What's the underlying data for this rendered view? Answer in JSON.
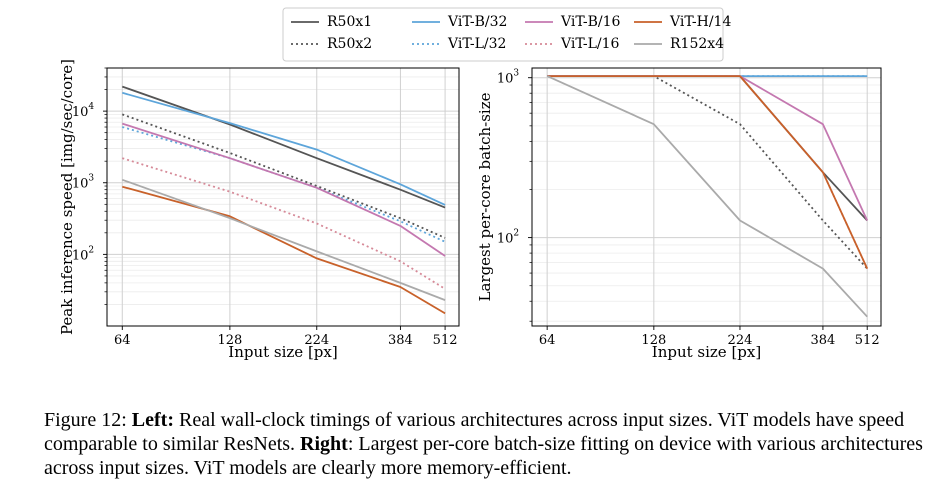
{
  "chart_data": [
    {
      "type": "line",
      "panel": "left",
      "xlabel": "Input size [px]",
      "ylabel": "Peak inference speed [img/sec/core]",
      "x_scale": "log",
      "y_scale": "log",
      "x_ticks": [
        64,
        128,
        224,
        384,
        512
      ],
      "y_ticks": [
        {
          "value": 100,
          "label": "10",
          "exp": "2"
        },
        {
          "value": 1000,
          "label": "10",
          "exp": "3"
        },
        {
          "value": 10000,
          "label": "10",
          "exp": "4"
        }
      ],
      "xlim": [
        58,
        560
      ],
      "ylim": [
        10,
        40000
      ],
      "grid": true,
      "x": [
        64,
        128,
        224,
        384,
        512
      ],
      "series": [
        {
          "name": "R50x1",
          "color": "#555555",
          "style": "solid",
          "values": [
            22000,
            6500,
            2200,
            800,
            450
          ]
        },
        {
          "name": "R50x2",
          "color": "#555555",
          "style": "dotted",
          "values": [
            9000,
            2600,
            900,
            320,
            170
          ]
        },
        {
          "name": "ViT-B/32",
          "color": "#5da5da",
          "style": "solid",
          "values": [
            18000,
            6800,
            2900,
            950,
            490
          ]
        },
        {
          "name": "ViT-L/32",
          "color": "#5da5da",
          "style": "dotted",
          "values": [
            6000,
            2200,
            850,
            290,
            150
          ]
        },
        {
          "name": "ViT-B/16",
          "color": "#c478b0",
          "style": "solid",
          "values": [
            6700,
            2200,
            850,
            250,
            95
          ]
        },
        {
          "name": "ViT-L/16",
          "color": "#d68a98",
          "style": "dotted",
          "values": [
            2200,
            750,
            270,
            80,
            33
          ]
        },
        {
          "name": "ViT-H/14",
          "color": "#c8612a",
          "style": "solid",
          "values": [
            880,
            340,
            88,
            35,
            15
          ]
        },
        {
          "name": "R152x4",
          "color": "#aaaaaa",
          "style": "solid",
          "values": [
            1100,
            320,
            110,
            40,
            23
          ]
        }
      ]
    },
    {
      "type": "line",
      "panel": "right",
      "xlabel": "Input size [px]",
      "ylabel": "Largest per-core batch-size",
      "x_scale": "log",
      "y_scale": "log",
      "x_ticks": [
        64,
        128,
        224,
        384,
        512
      ],
      "y_ticks": [
        {
          "value": 100,
          "label": "10",
          "exp": "2"
        },
        {
          "value": 1000,
          "label": "10",
          "exp": "3"
        }
      ],
      "xlim": [
        58,
        560
      ],
      "ylim": [
        28,
        1150
      ],
      "grid": true,
      "x": [
        64,
        128,
        224,
        384,
        512
      ],
      "series": [
        {
          "name": "R50x1",
          "color": "#555555",
          "style": "solid",
          "values": [
            1024,
            1024,
            1024,
            256,
            128
          ]
        },
        {
          "name": "R50x2",
          "color": "#555555",
          "style": "dotted",
          "values": [
            1024,
            1024,
            512,
            128,
            64
          ]
        },
        {
          "name": "ViT-B/32",
          "color": "#5da5da",
          "style": "solid",
          "values": [
            1024,
            1024,
            1024,
            1024,
            1024
          ]
        },
        {
          "name": "ViT-L/32",
          "color": "#5da5da",
          "style": "dotted",
          "values": [
            1024,
            1024,
            1024,
            1024,
            1024
          ]
        },
        {
          "name": "ViT-B/16",
          "color": "#c478b0",
          "style": "solid",
          "values": [
            1024,
            1024,
            1024,
            512,
            128
          ]
        },
        {
          "name": "ViT-L/16",
          "color": "#d68a98",
          "style": "dotted",
          "values": [
            1024,
            1024,
            1024,
            256,
            64
          ]
        },
        {
          "name": "ViT-H/14",
          "color": "#c8612a",
          "style": "solid",
          "values": [
            1024,
            1024,
            1024,
            256,
            64
          ]
        },
        {
          "name": "R152x4",
          "color": "#aaaaaa",
          "style": "solid",
          "values": [
            1024,
            512,
            128,
            64,
            32
          ]
        }
      ]
    }
  ],
  "legend": {
    "placement": "top-center",
    "items": [
      "R50x1",
      "ViT-B/32",
      "ViT-B/16",
      "ViT-H/14",
      "R50x2",
      "ViT-L/32",
      "ViT-L/16",
      "R152x4"
    ]
  },
  "caption": {
    "figure_label": "Figure 12:",
    "left_label": "Left:",
    "left_text": " Real wall-clock timings of various architectures across input sizes. ViT models have speed comparable to similar ResNets. ",
    "right_label": "Right",
    "right_text": ": Largest per-core batch-size fitting on device with various architectures across input sizes. ViT models are clearly more memory-efficient."
  }
}
